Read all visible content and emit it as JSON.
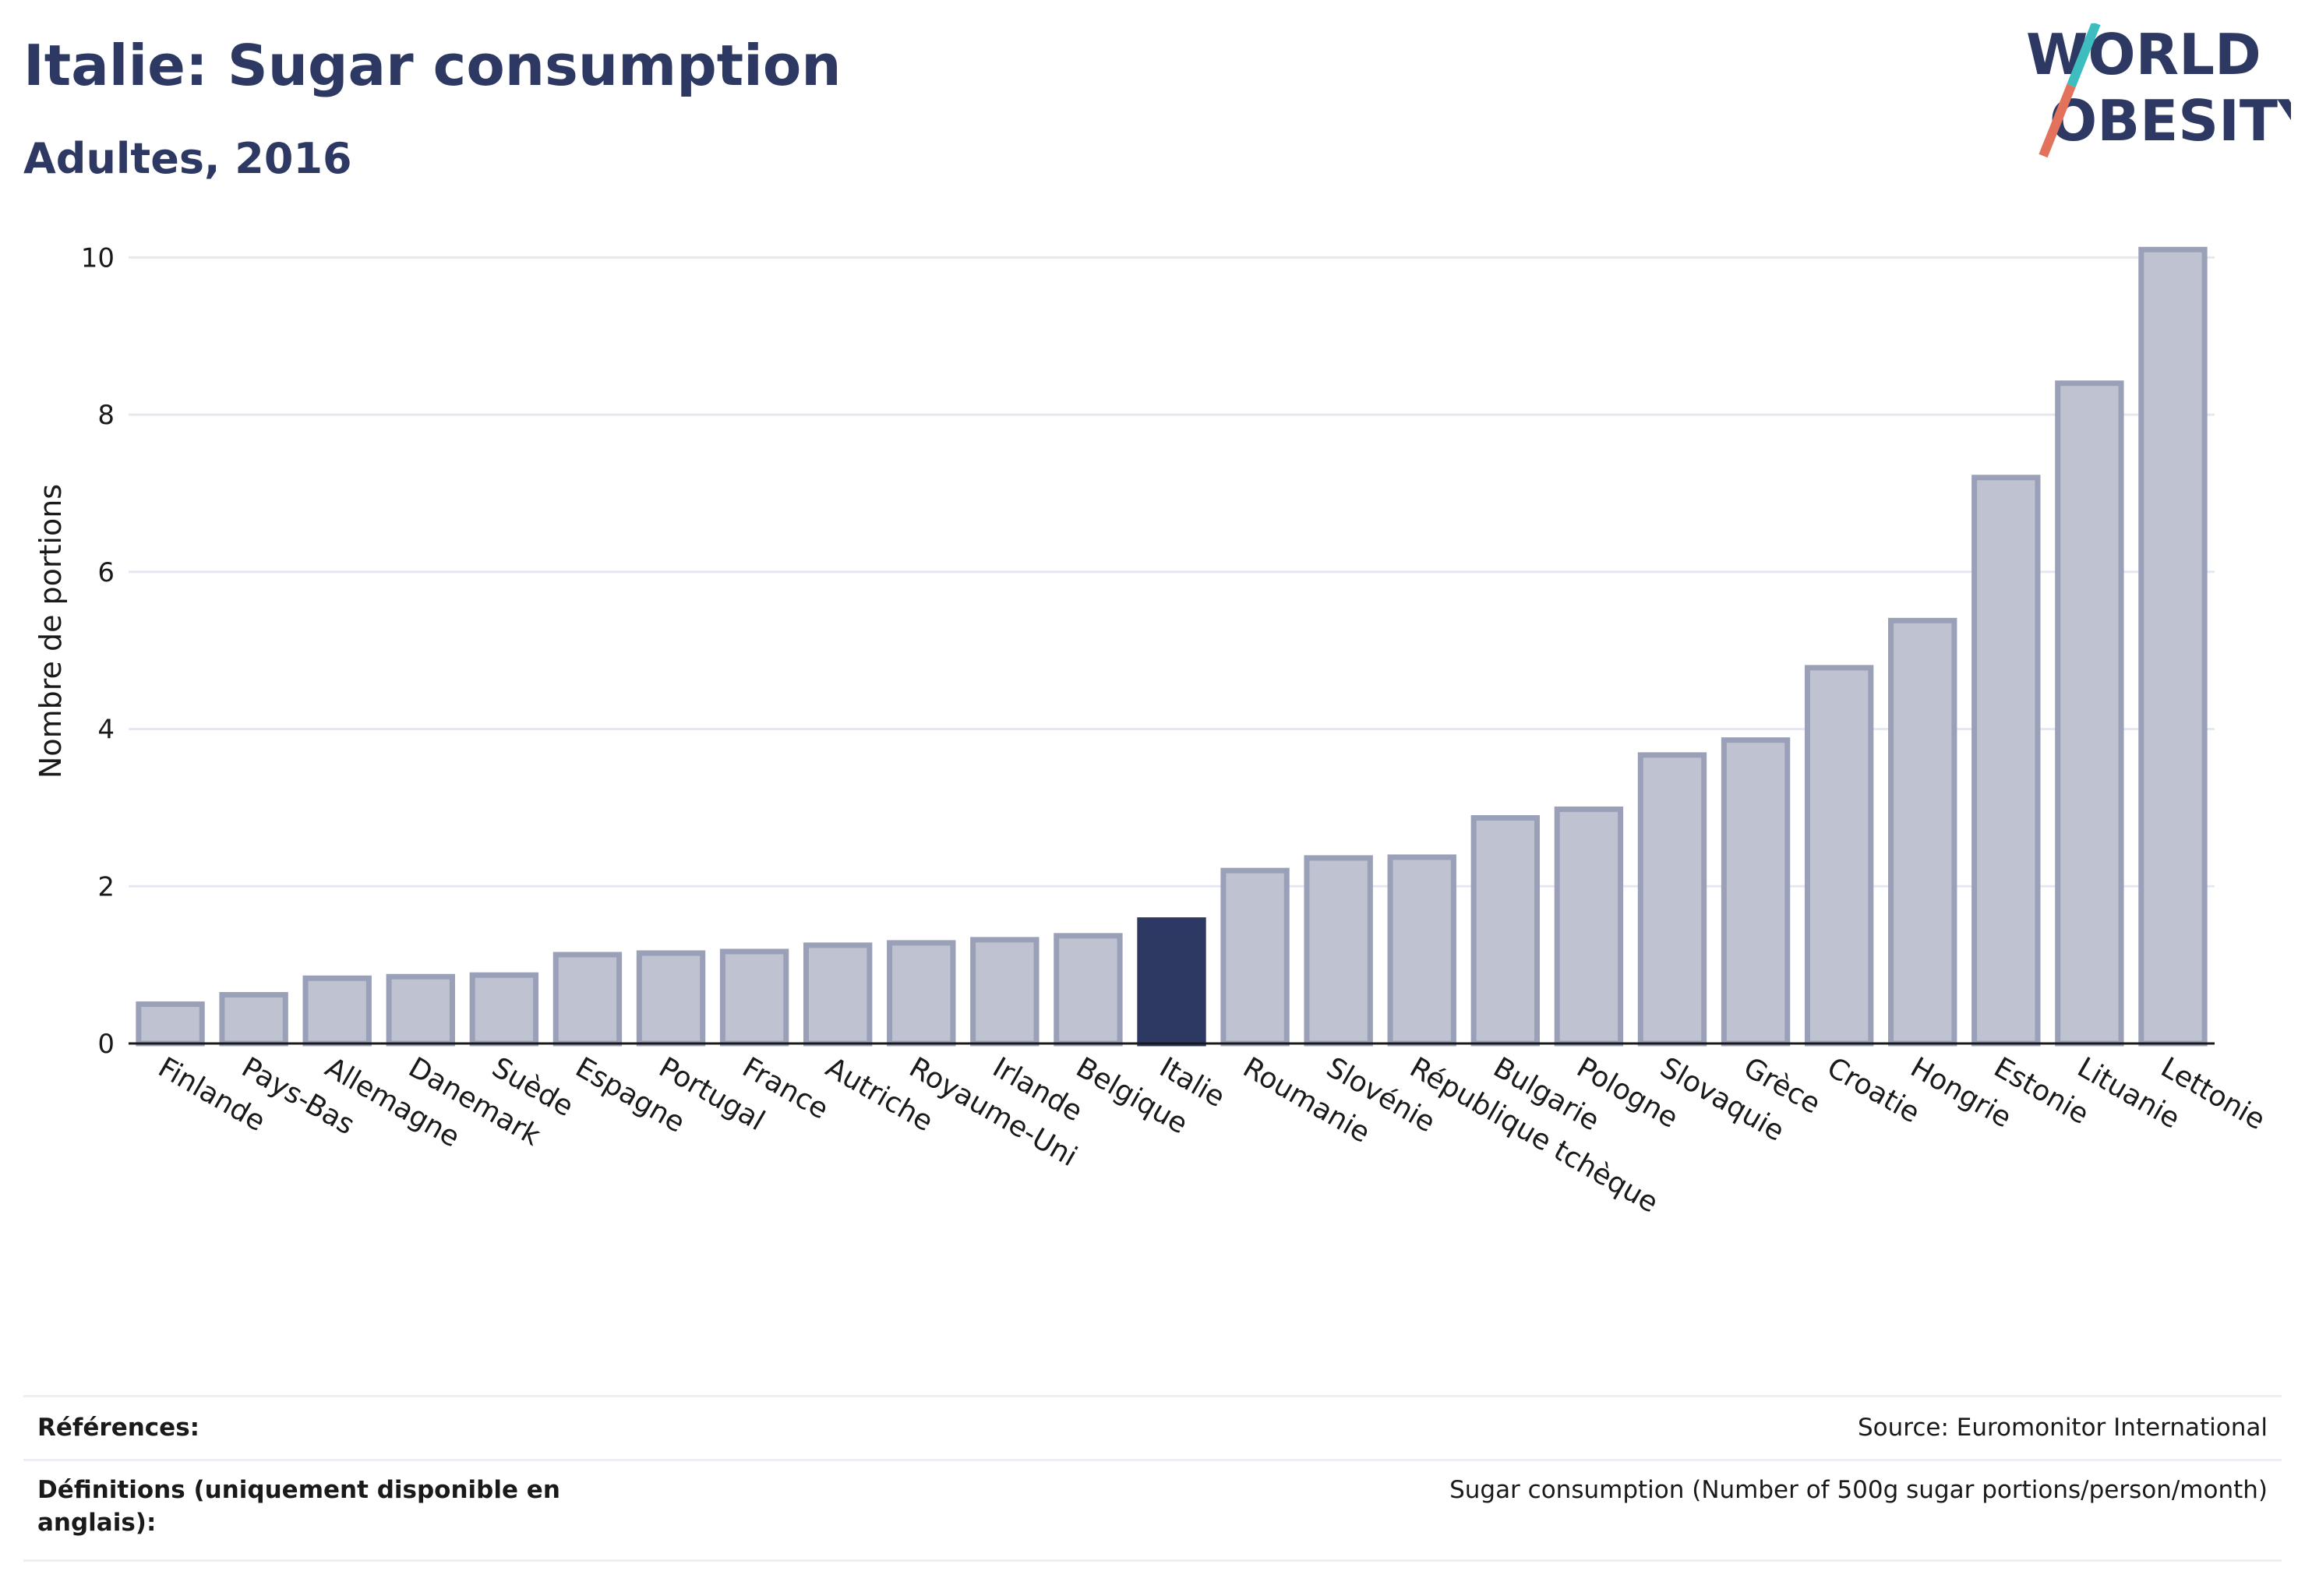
{
  "header": {
    "title": "Italie: Sugar consumption",
    "subtitle": "Adultes, 2016"
  },
  "logo": {
    "line1": "WORLD",
    "line2": "OBESITY",
    "slash_colors": [
      "#3dbdbd",
      "#e2725b"
    ]
  },
  "colors": {
    "highlight": "#2d3863",
    "bar_fill": "#bfc2d0",
    "bar_stroke": "#9aa0b8",
    "grid": "#e6e8ef"
  },
  "chart_data": {
    "type": "bar",
    "title": "Italie: Sugar consumption",
    "subtitle": "Adultes, 2016",
    "xlabel": "",
    "ylabel": "Nombre de portions",
    "ylim": [
      0,
      10.4
    ],
    "yticks": [
      0,
      2,
      4,
      6,
      8,
      10
    ],
    "grid": true,
    "highlight_category": "Italie",
    "categories": [
      "Finlande",
      "Pays-Bas",
      "Allemagne",
      "Danemark",
      "Suède",
      "Espagne",
      "Portugal",
      "France",
      "Autriche",
      "Royaume-Uni",
      "Irlande",
      "Belgique",
      "Italie",
      "Roumanie",
      "Slovénie",
      "République tchèque",
      "Bulgarie",
      "Pologne",
      "Slovaquie",
      "Grèce",
      "Croatie",
      "Hongrie",
      "Estonie",
      "Lituanie",
      "Lettonie"
    ],
    "values": [
      0.5,
      0.62,
      0.83,
      0.85,
      0.87,
      1.13,
      1.15,
      1.17,
      1.25,
      1.28,
      1.32,
      1.37,
      1.57,
      2.2,
      2.36,
      2.37,
      2.87,
      2.98,
      3.67,
      3.86,
      4.78,
      5.38,
      7.2,
      8.4,
      10.1
    ]
  },
  "footer": {
    "references_label": "Références:",
    "references_value": "Source: Euromonitor International",
    "definitions_label": "Définitions (uniquement disponible en anglais):",
    "definitions_value": "Sugar consumption (Number of 500g sugar portions/person/month)"
  }
}
